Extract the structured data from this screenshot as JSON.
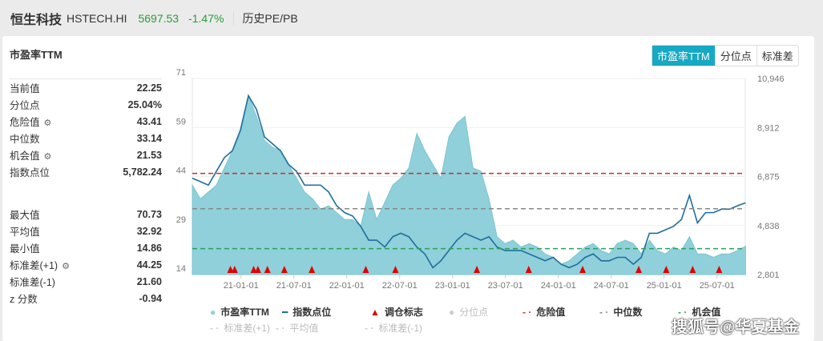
{
  "header": {
    "name": "恒生科技",
    "code": "HSTECH.HI",
    "price": "5697.53",
    "change": "-1.47%",
    "mode": "历史PE/PB"
  },
  "panel": {
    "title": "市盈率TTM",
    "tabs": [
      "市盈率TTM",
      "分位点",
      "标准差"
    ]
  },
  "stats_top": [
    {
      "label": "当前值",
      "value": "22.25"
    },
    {
      "label": "分位点",
      "value": "25.04%"
    },
    {
      "label": "危险值",
      "value": "43.41",
      "gear": true
    },
    {
      "label": "中位数",
      "value": "33.14"
    },
    {
      "label": "机会值",
      "value": "21.53",
      "gear": true
    },
    {
      "label": "指数点位",
      "value": "5,782.24"
    }
  ],
  "stats_bottom": [
    {
      "label": "最大值",
      "value": "70.73"
    },
    {
      "label": "平均值",
      "value": "32.92"
    },
    {
      "label": "最小值",
      "value": "14.86"
    },
    {
      "label": "标准差(+1)",
      "value": "44.25",
      "gear": true
    },
    {
      "label": "标准差(-1)",
      "value": "21.60"
    },
    {
      "label": "z 分数",
      "value": "-0.94"
    }
  ],
  "watermark": "搜狐号@华夏基金",
  "colors": {
    "pe_area": "#8fd0da",
    "index_line": "#1f6e9e",
    "danger": "#d62728",
    "median": "#888888",
    "opportunity": "#2ca05a",
    "marker": "#e00000",
    "accent": "#17a8c4"
  },
  "chart_data": {
    "type": "line",
    "x_unit": "decimal year",
    "series_start_year": 2020.54,
    "series_step_years": 0.0758,
    "left_axis": {
      "ticks": [
        "71",
        "59",
        "44",
        "29",
        "14"
      ],
      "range": [
        14,
        71
      ]
    },
    "right_axis": {
      "ticks": [
        "10,946",
        "8,912",
        "6,875",
        "4,838",
        "2,801"
      ],
      "range": [
        2801,
        10946
      ]
    },
    "x_ticks": [
      {
        "label": "21-01-01",
        "year": 2021.0
      },
      {
        "label": "21-07-01",
        "year": 2021.5
      },
      {
        "label": "22-01-01",
        "year": 2022.0
      },
      {
        "label": "22-07-01",
        "year": 2022.5
      },
      {
        "label": "23-01-01",
        "year": 2023.0
      },
      {
        "label": "23-07-01",
        "year": 2023.5
      },
      {
        "label": "24-01-01",
        "year": 2024.0
      },
      {
        "label": "24-07-01",
        "year": 2024.5
      },
      {
        "label": "25-01-01",
        "year": 2025.0
      },
      {
        "label": "25-07-01",
        "year": 2025.5
      }
    ],
    "pe": [
      40,
      36,
      38,
      40,
      45,
      50,
      55,
      66,
      60,
      53,
      51,
      50,
      46,
      42,
      38,
      36,
      33,
      34,
      32,
      30,
      30,
      28,
      38,
      30,
      35,
      40,
      42,
      45,
      55,
      50,
      46,
      42,
      54,
      58,
      60,
      45,
      44,
      36,
      25,
      23,
      24,
      22,
      23,
      22,
      20,
      19,
      17,
      18,
      20,
      22,
      23,
      21,
      20,
      23,
      24,
      23,
      20,
      24,
      21,
      20,
      22,
      21,
      25,
      20,
      20,
      19,
      20,
      20,
      21,
      22.25
    ],
    "index": [
      6802,
      6660,
      6516,
      7088,
      7660,
      7945,
      8803,
      10232,
      9660,
      8517,
      8231,
      7945,
      7374,
      7088,
      6516,
      6516,
      6516,
      6231,
      5659,
      5373,
      5230,
      4802,
      4230,
      4230,
      3944,
      4373,
      4516,
      4373,
      3944,
      3658,
      3087,
      3373,
      3801,
      4230,
      4516,
      4373,
      4230,
      4373,
      3944,
      3801,
      3801,
      3801,
      3658,
      3516,
      3373,
      3516,
      3230,
      3087,
      3230,
      3516,
      3658,
      3373,
      3373,
      3516,
      3516,
      3230,
      3516,
      4516,
      4516,
      4659,
      4802,
      5087,
      6088,
      4945,
      5373,
      5373,
      5516,
      5516,
      5659,
      5782
    ],
    "rebalance_years": [
      2020.9,
      2020.94,
      2021.12,
      2021.16,
      2021.25,
      2021.41,
      2021.67,
      2022.18,
      2022.46,
      2023.23,
      2023.72,
      2024.23,
      2024.76,
      2025.02,
      2025.27,
      2025.52
    ],
    "danger": 43.41,
    "median": 33.14,
    "opportunity": 21.53,
    "legend": [
      {
        "label": "市盈率TTM",
        "active": true
      },
      {
        "label": "指数点位",
        "active": true
      },
      {
        "label": "调仓标志",
        "active": true
      },
      {
        "label": "分位点",
        "active": false
      },
      {
        "label": "危险值",
        "active": true
      },
      {
        "label": "中位数",
        "active": true
      },
      {
        "label": "机会值",
        "active": true
      },
      {
        "label": "标准差(+1)",
        "active": false
      },
      {
        "label": "平均值",
        "active": false
      },
      {
        "label": "标准差(-1)",
        "active": false
      }
    ]
  }
}
